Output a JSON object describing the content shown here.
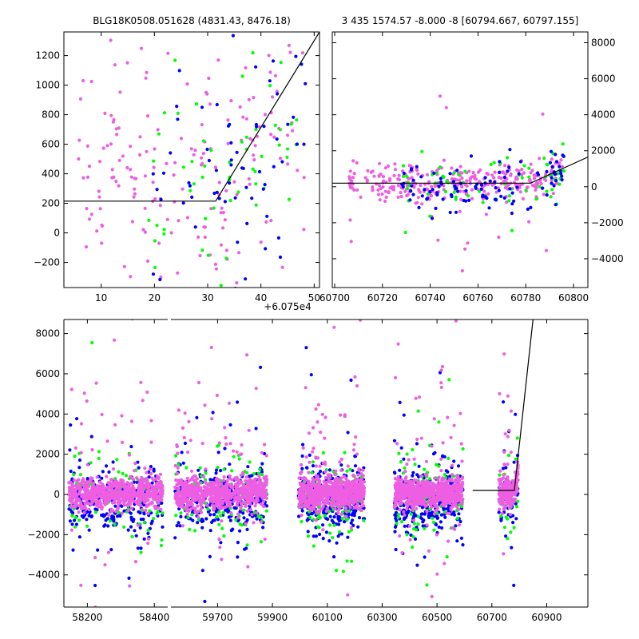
{
  "colors": {
    "series_green": "#00ff00",
    "series_blue": "#0000ff",
    "series_pink": "#ee5ee2",
    "model": "#000000"
  },
  "chart_data": [
    {
      "id": "zoom",
      "type": "scatter",
      "title": "BLG18K0508.051628 (4831.43, 8476.18)",
      "offset_label": "+6.075e4",
      "xlim": [
        3,
        51
      ],
      "ylim": [
        -370,
        1360
      ],
      "xticks": [
        10,
        20,
        30,
        40,
        50
      ],
      "xtick_labels": [
        "10",
        "20",
        "30",
        "40",
        "50"
      ],
      "yticks": [
        -200,
        0,
        200,
        400,
        600,
        800,
        1000,
        1200
      ],
      "ytick_labels": [
        "−200",
        "0",
        "200",
        "400",
        "600",
        "800",
        "1000",
        "1200"
      ],
      "model_line": {
        "x": [
          3,
          31.5,
          51
        ],
        "y": [
          215,
          215,
          1360
        ]
      },
      "series": [
        {
          "name": "pink",
          "color": "#ee5ee2",
          "n": 190,
          "center_x": 27,
          "spread_x": 24,
          "base_y": 350,
          "spread_y": 450
        },
        {
          "name": "green",
          "color": "#00ff00",
          "n": 60,
          "center_x": 33,
          "spread_x": 16,
          "base_y": 300,
          "spread_y": 450
        },
        {
          "name": "blue",
          "color": "#0000ff",
          "n": 70,
          "center_x": 34,
          "spread_x": 16,
          "base_y": 250,
          "spread_y": 450
        }
      ]
    },
    {
      "id": "recent",
      "type": "scatter",
      "title": "3 435 1574.57 -8.000 -8 [60794.667, 60797.155]",
      "xlim": [
        60699,
        60806
      ],
      "ylim": [
        -5600,
        8600
      ],
      "xticks": [
        60700,
        60720,
        60740,
        60760,
        60780,
        60800
      ],
      "xtick_labels": [
        "60700",
        "60720",
        "60740",
        "60760",
        "60780",
        "60800"
      ],
      "yticks": [
        -4000,
        -2000,
        0,
        2000,
        4000,
        6000,
        8000
      ],
      "ytick_labels": [
        "−4000",
        "−2000",
        "0",
        "2000",
        "4000",
        "6000",
        "8000"
      ],
      "yaxis_side": "right",
      "model_line": {
        "x": [
          60699,
          60782,
          60806
        ],
        "y": [
          200,
          200,
          1650
        ]
      },
      "series": [
        {
          "name": "pink",
          "color": "#ee5ee2",
          "n": 330,
          "x_range": [
            60706,
            60796
          ],
          "base_y": 200,
          "spread_y": 500
        },
        {
          "name": "green",
          "color": "#00ff00",
          "n": 70,
          "x_range": [
            60728,
            60796
          ],
          "base_y": 0,
          "spread_y": 800
        },
        {
          "name": "blue",
          "color": "#0000ff",
          "n": 110,
          "x_range": [
            60728,
            60796
          ],
          "base_y": -100,
          "spread_y": 700
        }
      ]
    },
    {
      "id": "full",
      "type": "scatter",
      "ylim": [
        -5600,
        8700
      ],
      "yticks": [
        -4000,
        -2000,
        0,
        2000,
        4000,
        6000,
        8000
      ],
      "ytick_labels": [
        "−4000",
        "−2000",
        "0",
        "2000",
        "4000",
        "6000",
        "8000"
      ],
      "broken_x_axis": true,
      "segments": [
        {
          "xlim": [
            58130,
            58440
          ],
          "xticks": [
            58200,
            58400
          ],
          "xtick_labels": [
            "58200",
            "58400"
          ],
          "seasons": [
            {
              "range": [
                58145,
                58425
              ],
              "n_pink": 700,
              "n_blue": 280,
              "n_green": 90
            }
          ]
        },
        {
          "xlim": [
            59530,
            61050
          ],
          "xticks": [
            59700,
            59900,
            60100,
            60300,
            60500,
            60700,
            60900
          ],
          "xtick_labels": [
            "59700",
            "59900",
            "60100",
            "60300",
            "60500",
            "60700",
            "60900"
          ],
          "seasons": [
            {
              "range": [
                59545,
                59880
              ],
              "n_pink": 750,
              "n_blue": 320,
              "n_green": 100
            },
            {
              "range": [
                59995,
                60235
              ],
              "n_pink": 750,
              "n_blue": 320,
              "n_green": 100
            },
            {
              "range": [
                60345,
                60595
              ],
              "n_pink": 750,
              "n_blue": 320,
              "n_green": 100
            },
            {
              "range": [
                60725,
                60796
              ],
              "n_pink": 220,
              "n_blue": 60,
              "n_green": 35
            }
          ],
          "model_line": {
            "x": [
              60630,
              60782,
              60850
            ],
            "y": [
              200,
              200,
              8700
            ]
          }
        }
      ]
    }
  ]
}
